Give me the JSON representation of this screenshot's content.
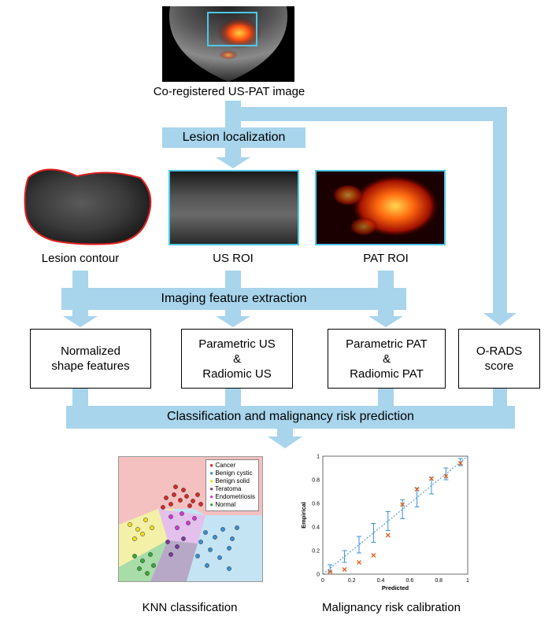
{
  "top_image": {
    "caption": "Co-registered US-PAT image"
  },
  "lesion_localization": {
    "label": "Lesion localization"
  },
  "rois": [
    {
      "label": "Lesion contour"
    },
    {
      "label": "US ROI"
    },
    {
      "label": "PAT ROI"
    }
  ],
  "feature_extraction": {
    "label": "Imaging feature extraction"
  },
  "feature_boxes": [
    {
      "lines": [
        "Normalized",
        "shape features"
      ]
    },
    {
      "lines": [
        "Parametric US",
        "&",
        "Radiomic US"
      ]
    },
    {
      "lines": [
        "Parametric PAT",
        "&",
        "Radiomic PAT"
      ]
    },
    {
      "lines": [
        "O-RADS",
        "score"
      ]
    }
  ],
  "classification": {
    "label": "Classification and malignancy risk prediction"
  },
  "knn": {
    "caption": "KNN classification",
    "legend": [
      {
        "name": "Cancer",
        "color": "#d42a2a"
      },
      {
        "name": "Benign cystic",
        "color": "#3a90d4"
      },
      {
        "name": "Benign solid",
        "color": "#f0e020"
      },
      {
        "name": "Teratoma",
        "color": "#7a3a9a"
      },
      {
        "name": "Endometriosis",
        "color": "#d03ad0"
      },
      {
        "name": "Normal",
        "color": "#3aa83a"
      }
    ]
  },
  "calibration": {
    "caption": "Malignancy risk calibration",
    "chart_data": {
      "type": "scatter",
      "xlabel": "Predicted",
      "ylabel": "Empirical",
      "xlim": [
        0,
        1
      ],
      "ylim": [
        0,
        1
      ],
      "x_ticks": [
        "0",
        "0.2",
        "0.4",
        "0.6",
        "0.8",
        "1"
      ],
      "y_ticks": [
        "0",
        "0.2",
        "0.4",
        "0.6",
        "0.8",
        "1"
      ],
      "grid": false,
      "series": [
        {
          "marker": "errorbar",
          "color": "#3a90d4",
          "x": [
            0.05,
            0.15,
            0.25,
            0.35,
            0.45,
            0.55,
            0.65,
            0.75,
            0.85,
            0.95
          ],
          "y": [
            0.05,
            0.15,
            0.25,
            0.35,
            0.45,
            0.55,
            0.65,
            0.75,
            0.85,
            0.95
          ],
          "err": [
            0.03,
            0.05,
            0.07,
            0.08,
            0.08,
            0.08,
            0.08,
            0.07,
            0.05,
            0.03
          ]
        },
        {
          "marker": "x",
          "color": "#e06020",
          "x": [
            0.05,
            0.15,
            0.25,
            0.35,
            0.45,
            0.55,
            0.65,
            0.75,
            0.85,
            0.95
          ],
          "y": [
            0.02,
            0.04,
            0.1,
            0.16,
            0.33,
            0.59,
            0.72,
            0.81,
            0.83,
            0.94
          ]
        }
      ],
      "reference_line": "dotted diagonal"
    }
  }
}
